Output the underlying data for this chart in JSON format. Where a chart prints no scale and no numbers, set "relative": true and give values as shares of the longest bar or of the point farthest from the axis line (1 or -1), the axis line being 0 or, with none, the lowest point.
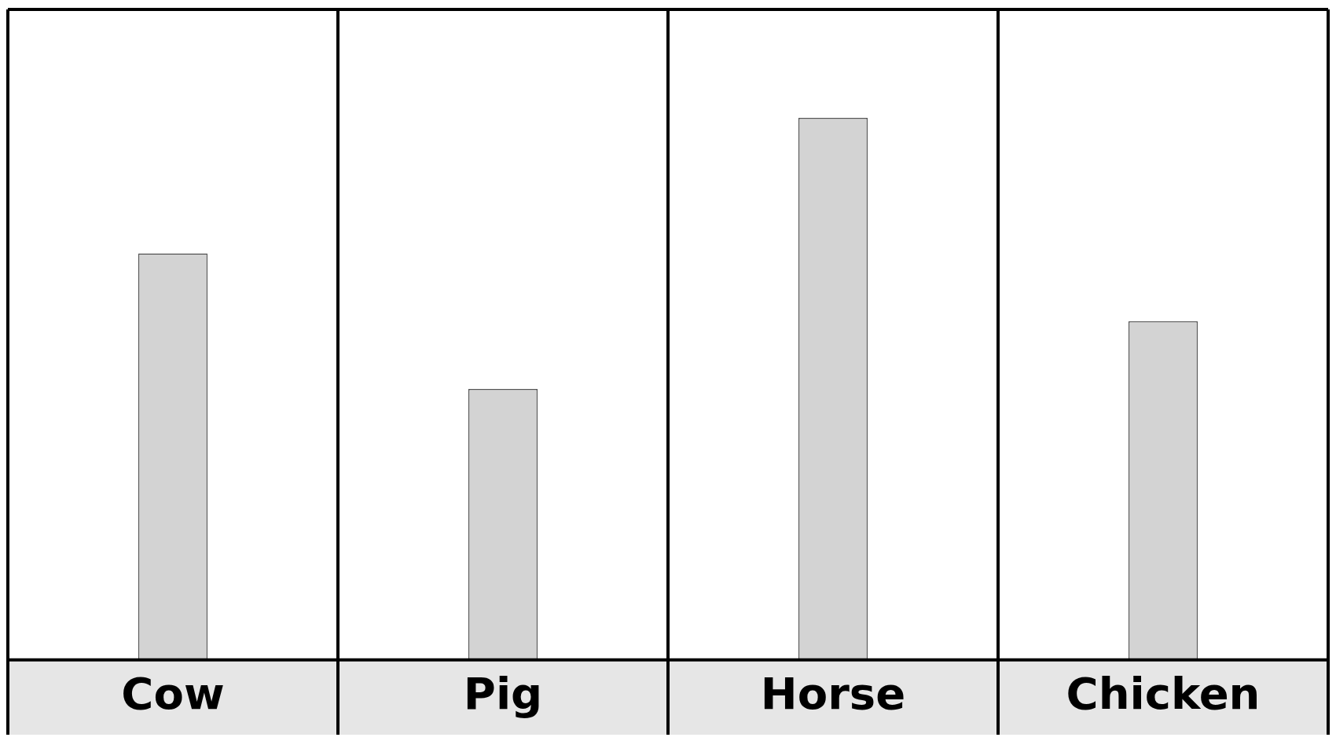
{
  "chart_data": {
    "type": "bar",
    "relative": true,
    "categories": [
      "Cow",
      "Pig",
      "Horse",
      "Chicken"
    ],
    "values": [
      0.75,
      0.5,
      1,
      0.625
    ],
    "color": "#d3d3d3",
    "grid": "x",
    "legend": false
  }
}
